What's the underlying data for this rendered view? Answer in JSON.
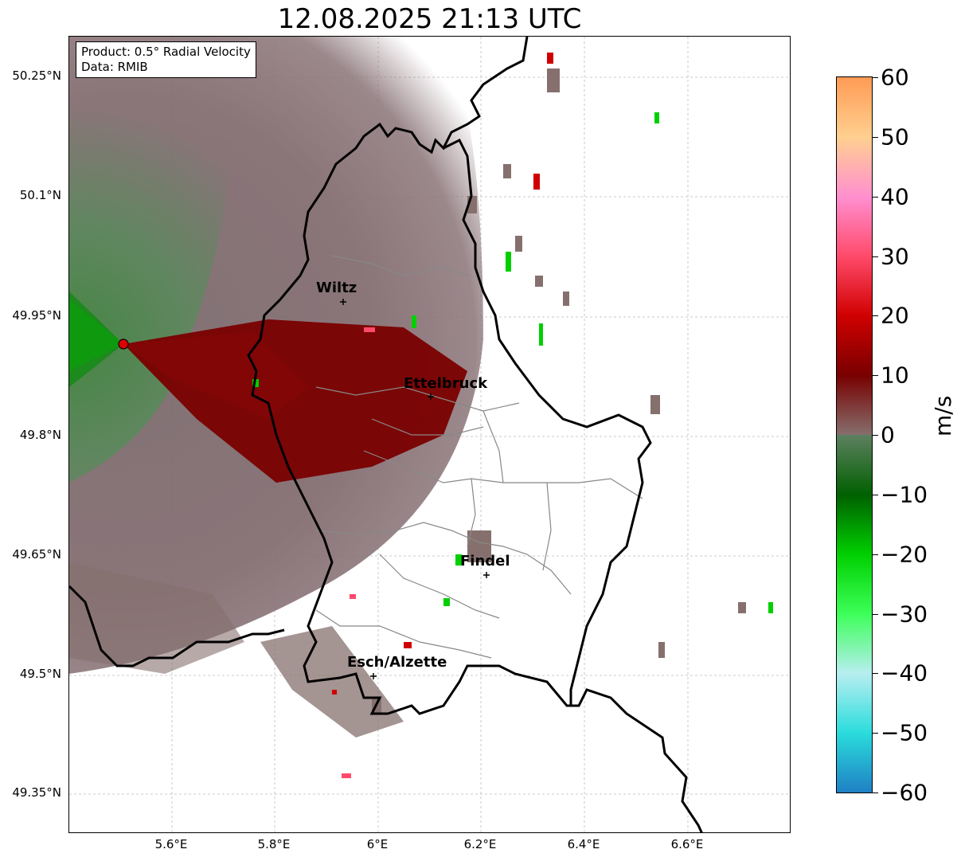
{
  "title": "12.08.2025 21:13 UTC",
  "info_box": {
    "product_line": "Product: 0.5° Radial Velocity",
    "data_line": "Data: RMIB"
  },
  "axes": {
    "lat_ticks": [
      "50.25°N",
      "50.1°N",
      "49.95°N",
      "49.8°N",
      "49.65°N",
      "49.5°N",
      "49.35°N"
    ],
    "lon_ticks": [
      "5.6°E",
      "5.8°E",
      "6°E",
      "6.2°E",
      "6.4°E",
      "6.6°E"
    ],
    "gridlines": true
  },
  "cities": [
    {
      "name": "Wiltz"
    },
    {
      "name": "Ettelbruck"
    },
    {
      "name": "Findel"
    },
    {
      "name": "Esch/Alzette"
    }
  ],
  "colorbar": {
    "unit": "m/s",
    "range": [
      -60,
      60
    ],
    "tick_labels": [
      "60",
      "50",
      "40",
      "30",
      "20",
      "10",
      "0",
      "−10",
      "−20",
      "−30",
      "−40",
      "−50",
      "−60"
    ],
    "colors": {
      "neg60": "#1f7fc4",
      "neg50": "#2adcdc",
      "neg40": "#b8eef0",
      "neg30": "#3dff5a",
      "neg20": "#00d000",
      "neg10": "#006000",
      "zero_neg": "#5d8060",
      "zero_pos": "#86706e",
      "pos10": "#780000",
      "pos20": "#d00000",
      "pos30": "#ff4a6a",
      "pos40": "#ff8fd0",
      "pos50": "#ffd090",
      "pos60": "#ff9b55"
    }
  },
  "colors": {
    "border_line": "#000000",
    "canton_line": "#888888",
    "radar_site": "#e00000"
  }
}
